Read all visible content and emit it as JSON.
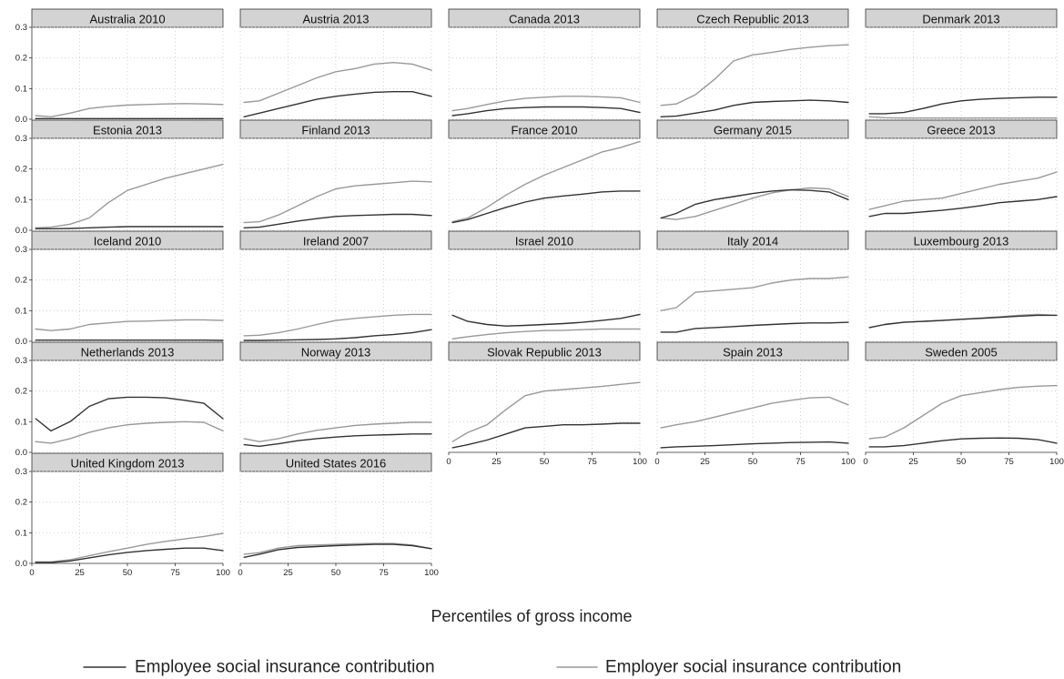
{
  "chart_data": {
    "type": "line",
    "xlabel": "Percentiles of gross income",
    "xlim": [
      0,
      100
    ],
    "ylim": [
      0,
      0.3
    ],
    "x_ticks": [
      0,
      25,
      50,
      75,
      100
    ],
    "x_tick_labels": [
      "0",
      "25",
      "50",
      "75",
      "100"
    ],
    "y_ticks": [
      0,
      0.1,
      0.2,
      0.3
    ],
    "y_tick_labels": [
      "0.0",
      "0.1",
      "0.2",
      "0.3"
    ],
    "grid": true,
    "legend_position": "bottom",
    "colors": {
      "employee": "#333333",
      "employer": "#999999"
    },
    "series_names": [
      "Employee social insurance contribution",
      "Employer social insurance contribution"
    ],
    "x": [
      2,
      10,
      20,
      30,
      40,
      50,
      60,
      70,
      80,
      90,
      100
    ],
    "panels": [
      {
        "title": "Australia 2010",
        "employee": [
          0.002,
          0.002,
          0.002,
          0.002,
          0.002,
          0.002,
          0.002,
          0.002,
          0.002,
          0.002,
          0.002
        ],
        "employer": [
          0.012,
          0.008,
          0.02,
          0.035,
          0.042,
          0.046,
          0.048,
          0.05,
          0.051,
          0.05,
          0.048
        ]
      },
      {
        "title": "Austria 2013",
        "employee": [
          0.008,
          0.02,
          0.035,
          0.05,
          0.065,
          0.075,
          0.082,
          0.088,
          0.09,
          0.09,
          0.075
        ],
        "employer": [
          0.055,
          0.06,
          0.085,
          0.11,
          0.135,
          0.155,
          0.165,
          0.18,
          0.185,
          0.18,
          0.16
        ]
      },
      {
        "title": "Canada 2013",
        "employee": [
          0.012,
          0.018,
          0.028,
          0.035,
          0.038,
          0.04,
          0.04,
          0.04,
          0.038,
          0.035,
          0.022
        ],
        "employer": [
          0.028,
          0.035,
          0.048,
          0.06,
          0.068,
          0.072,
          0.075,
          0.075,
          0.073,
          0.07,
          0.055
        ]
      },
      {
        "title": "Czech Republic 2013",
        "employee": [
          0.008,
          0.01,
          0.02,
          0.03,
          0.045,
          0.055,
          0.058,
          0.06,
          0.062,
          0.06,
          0.055
        ],
        "employer": [
          0.045,
          0.05,
          0.08,
          0.13,
          0.19,
          0.21,
          0.218,
          0.228,
          0.235,
          0.24,
          0.243
        ]
      },
      {
        "title": "Denmark 2013",
        "employee": [
          0.018,
          0.018,
          0.022,
          0.035,
          0.05,
          0.06,
          0.065,
          0.068,
          0.07,
          0.072,
          0.072
        ],
        "employer": [
          0.008,
          0.005,
          0.004,
          0.004,
          0.004,
          0.004,
          0.004,
          0.004,
          0.004,
          0.004,
          0.004
        ]
      },
      {
        "title": "Estonia 2013",
        "employee": [
          0.005,
          0.005,
          0.006,
          0.008,
          0.01,
          0.012,
          0.012,
          0.012,
          0.012,
          0.012,
          0.012
        ],
        "employer": [
          0.008,
          0.01,
          0.02,
          0.04,
          0.09,
          0.13,
          0.15,
          0.17,
          0.185,
          0.2,
          0.215
        ]
      },
      {
        "title": "Finland 2013",
        "employee": [
          0.008,
          0.01,
          0.02,
          0.03,
          0.038,
          0.045,
          0.048,
          0.05,
          0.052,
          0.052,
          0.048
        ],
        "employer": [
          0.025,
          0.028,
          0.05,
          0.08,
          0.11,
          0.135,
          0.145,
          0.15,
          0.155,
          0.16,
          0.158
        ]
      },
      {
        "title": "France 2010",
        "employee": [
          0.025,
          0.035,
          0.055,
          0.075,
          0.092,
          0.105,
          0.112,
          0.118,
          0.125,
          0.128,
          0.128
        ],
        "employer": [
          0.028,
          0.04,
          0.075,
          0.115,
          0.15,
          0.18,
          0.205,
          0.23,
          0.255,
          0.27,
          0.29
        ]
      },
      {
        "title": "Germany 2015",
        "employee": [
          0.04,
          0.055,
          0.085,
          0.1,
          0.11,
          0.12,
          0.128,
          0.132,
          0.13,
          0.125,
          0.1
        ],
        "employer": [
          0.04,
          0.035,
          0.045,
          0.065,
          0.085,
          0.105,
          0.122,
          0.132,
          0.138,
          0.135,
          0.11
        ]
      },
      {
        "title": "Greece 2013",
        "employee": [
          0.045,
          0.055,
          0.055,
          0.06,
          0.065,
          0.072,
          0.08,
          0.09,
          0.095,
          0.1,
          0.11
        ],
        "employer": [
          0.068,
          0.08,
          0.095,
          0.1,
          0.105,
          0.12,
          0.135,
          0.15,
          0.16,
          0.17,
          0.19
        ]
      },
      {
        "title": "Iceland 2010",
        "employee": [
          0.004,
          0.004,
          0.004,
          0.004,
          0.004,
          0.004,
          0.004,
          0.004,
          0.004,
          0.004,
          0.003
        ],
        "employer": [
          0.04,
          0.035,
          0.04,
          0.055,
          0.06,
          0.065,
          0.066,
          0.068,
          0.07,
          0.07,
          0.068
        ]
      },
      {
        "title": "Ireland 2007",
        "employee": [
          0.003,
          0.003,
          0.004,
          0.005,
          0.006,
          0.008,
          0.012,
          0.018,
          0.022,
          0.028,
          0.038
        ],
        "employer": [
          0.018,
          0.02,
          0.028,
          0.04,
          0.055,
          0.068,
          0.075,
          0.08,
          0.085,
          0.088,
          0.088
        ]
      },
      {
        "title": "Israel 2010",
        "employee": [
          0.085,
          0.065,
          0.055,
          0.05,
          0.052,
          0.055,
          0.058,
          0.062,
          0.068,
          0.075,
          0.088
        ],
        "employer": [
          0.008,
          0.015,
          0.022,
          0.028,
          0.032,
          0.035,
          0.036,
          0.038,
          0.04,
          0.04,
          0.04
        ]
      },
      {
        "title": "Italy 2014",
        "employee": [
          0.03,
          0.03,
          0.042,
          0.045,
          0.048,
          0.052,
          0.055,
          0.058,
          0.06,
          0.06,
          0.062
        ],
        "employer": [
          0.1,
          0.11,
          0.16,
          0.165,
          0.17,
          0.175,
          0.19,
          0.2,
          0.205,
          0.205,
          0.21
        ]
      },
      {
        "title": "Luxembourg 2013",
        "employee": [
          0.045,
          0.055,
          0.062,
          0.065,
          0.068,
          0.072,
          0.075,
          0.078,
          0.082,
          0.085,
          0.085
        ],
        "employer": [
          0.045,
          0.055,
          0.062,
          0.065,
          0.068,
          0.072,
          0.076,
          0.08,
          0.085,
          0.088,
          0.085
        ]
      },
      {
        "title": "Netherlands 2013",
        "employee": [
          0.11,
          0.07,
          0.1,
          0.15,
          0.175,
          0.18,
          0.18,
          0.178,
          0.17,
          0.16,
          0.11
        ],
        "employer": [
          0.035,
          0.03,
          0.045,
          0.065,
          0.08,
          0.09,
          0.095,
          0.098,
          0.1,
          0.098,
          0.07
        ]
      },
      {
        "title": "Norway 2013",
        "employee": [
          0.025,
          0.02,
          0.028,
          0.038,
          0.045,
          0.05,
          0.054,
          0.056,
          0.058,
          0.06,
          0.06
        ],
        "employer": [
          0.045,
          0.035,
          0.045,
          0.06,
          0.072,
          0.08,
          0.088,
          0.092,
          0.095,
          0.098,
          0.098
        ]
      },
      {
        "title": "Slovak Republic 2013",
        "employee": [
          0.015,
          0.025,
          0.04,
          0.06,
          0.08,
          0.085,
          0.09,
          0.09,
          0.092,
          0.095,
          0.095
        ],
        "employer": [
          0.035,
          0.065,
          0.09,
          0.14,
          0.185,
          0.2,
          0.205,
          0.21,
          0.215,
          0.222,
          0.228
        ]
      },
      {
        "title": "Spain 2013",
        "employee": [
          0.015,
          0.018,
          0.02,
          0.022,
          0.025,
          0.028,
          0.03,
          0.032,
          0.033,
          0.034,
          0.03
        ],
        "employer": [
          0.08,
          0.09,
          0.1,
          0.115,
          0.13,
          0.145,
          0.16,
          0.17,
          0.178,
          0.18,
          0.155
        ]
      },
      {
        "title": "Sweden 2005",
        "employee": [
          0.018,
          0.018,
          0.022,
          0.03,
          0.038,
          0.044,
          0.046,
          0.047,
          0.046,
          0.042,
          0.03
        ],
        "employer": [
          0.045,
          0.05,
          0.08,
          0.12,
          0.16,
          0.185,
          0.195,
          0.205,
          0.212,
          0.216,
          0.218
        ]
      },
      {
        "title": "United Kingdom 2013",
        "employee": [
          0.003,
          0.003,
          0.008,
          0.018,
          0.028,
          0.036,
          0.042,
          0.046,
          0.05,
          0.05,
          0.042
        ],
        "employer": [
          0.005,
          0.005,
          0.012,
          0.025,
          0.038,
          0.05,
          0.062,
          0.072,
          0.08,
          0.088,
          0.098
        ]
      },
      {
        "title": "United States 2016",
        "employee": [
          0.02,
          0.03,
          0.045,
          0.052,
          0.055,
          0.058,
          0.06,
          0.062,
          0.062,
          0.058,
          0.048
        ],
        "employer": [
          0.03,
          0.035,
          0.05,
          0.058,
          0.06,
          0.062,
          0.064,
          0.065,
          0.065,
          0.06,
          0.048
        ]
      }
    ]
  }
}
